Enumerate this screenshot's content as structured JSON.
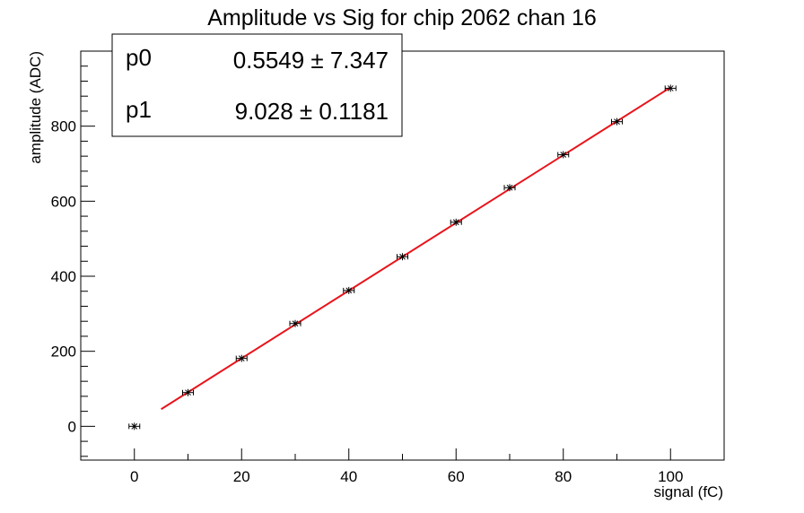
{
  "chart_data": {
    "type": "scatter",
    "title": "Amplitude vs Sig for chip 2062 chan 16",
    "xlabel": "signal (fC)",
    "ylabel": "amplitude (ADC)",
    "xlim": [
      -10,
      110
    ],
    "ylim": [
      -90,
      1000
    ],
    "x_ticks": [
      0,
      20,
      40,
      60,
      80,
      100
    ],
    "y_ticks": [
      0,
      200,
      400,
      600,
      800
    ],
    "grid": false,
    "points": {
      "x": [
        0,
        10,
        20,
        30,
        40,
        50,
        60,
        70,
        80,
        90,
        100
      ],
      "y": [
        0,
        90,
        181,
        274,
        362,
        452,
        544,
        636,
        724,
        812,
        901
      ]
    },
    "fit": {
      "color": "#e8141b",
      "x_range": [
        5,
        100
      ],
      "p0": 0.5549,
      "p1": 9.028
    },
    "stats_box": {
      "position": "top-left",
      "rows": [
        {
          "name": "p0",
          "value": "0.5549 ± 7.347"
        },
        {
          "name": "p1",
          "value": "9.028 ± 0.1181"
        }
      ]
    }
  }
}
